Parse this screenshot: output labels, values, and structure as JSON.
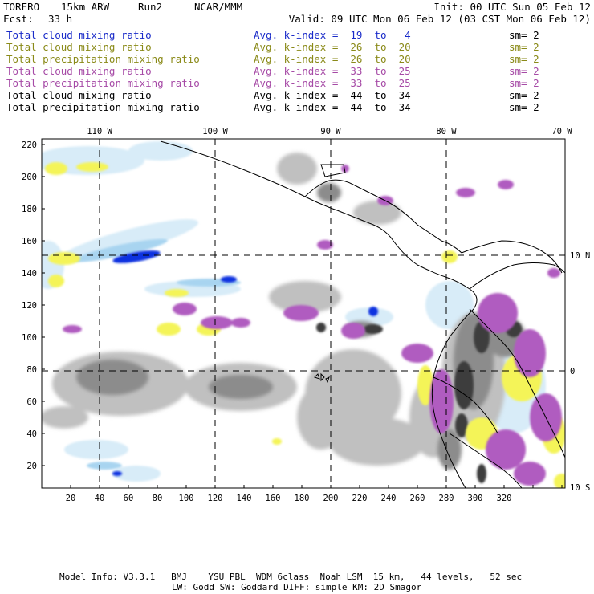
{
  "header": {
    "model": "TORERO",
    "resolution": "15km ARW",
    "run": "Run2",
    "org": "NCAR/MMM",
    "init": "Init: 00 UTC Sun 05 Feb 12",
    "fcst_label": "Fcst:",
    "fcst_value": "33 h",
    "valid": "Valid: 09 UTC Mon 06 Feb 12 (03 CST Mon 06 Feb 12)"
  },
  "legend": [
    {
      "field": "Total cloud mixing ratio",
      "index": "Avg. k-index =  19  to   4",
      "sm": "sm= 2",
      "color": "#1a2bc9",
      "cls": "blue"
    },
    {
      "field": "Total cloud mixing ratio",
      "index": "Avg. k-index =  26  to  20",
      "sm": "sm= 2",
      "color": "#8a8a18",
      "cls": "olive"
    },
    {
      "field": "Total precipitation mixing ratio",
      "index": "Avg. k-index =  26  to  20",
      "sm": "sm= 2",
      "color": "#8a8a18",
      "cls": "olive"
    },
    {
      "field": "Total cloud mixing ratio",
      "index": "Avg. k-index =  33  to  25",
      "sm": "sm= 2",
      "color": "#a64aa6",
      "cls": "purple"
    },
    {
      "field": "Total precipitation mixing ratio",
      "index": "Avg. k-index =  33  to  25",
      "sm": "sm= 2",
      "color": "#a64aa6",
      "cls": "purple"
    },
    {
      "field": "Total cloud mixing ratio",
      "index": "Avg. k-index =  44  to  34",
      "sm": "sm= 2",
      "color": "#000000",
      "cls": "black"
    },
    {
      "field": "Total precipitation mixing ratio",
      "index": "Avg. k-index =  44  to  34",
      "sm": "sm= 2",
      "color": "#000000",
      "cls": "black"
    }
  ],
  "map": {
    "lon_labels": [
      "110 W",
      "100 W",
      "90 W",
      "80 W",
      "70 W"
    ],
    "lat_labels": [
      "10 N",
      "0",
      "10 S"
    ],
    "y_ticks": [
      "220",
      "200",
      "180",
      "160",
      "140",
      "120",
      "100",
      "80",
      "60",
      "40",
      "20"
    ],
    "x_ticks": [
      "20",
      "40",
      "60",
      "80",
      "100",
      "120",
      "140",
      "160",
      "180",
      "200",
      "220",
      "240",
      "260",
      "280",
      "300",
      "320"
    ],
    "colors": {
      "ice_light": "#d8ecf8",
      "ice_mid": "#a8d4f0",
      "blue_core": "#1030e0",
      "yellow": "#f4f458",
      "magenta": "#b05cc0",
      "gray_light": "#c0c0c0",
      "gray_mid": "#8c8c8c",
      "gray_dark": "#3c3c3c"
    }
  },
  "footer": {
    "line1": "Model Info: V3.3.1   BMJ    YSU PBL  WDM 6class  Noah LSM  15 km,   44 levels,   52 sec",
    "line2": "LW: Godd SW: Goddard DIFF: simple KM: 2D Smagor"
  }
}
